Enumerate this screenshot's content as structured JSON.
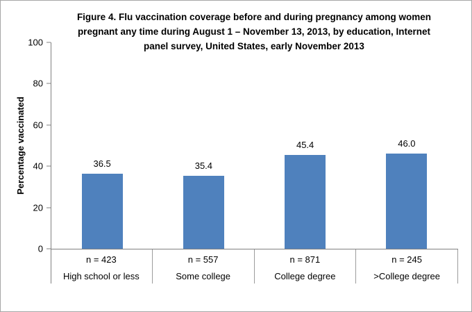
{
  "window": {
    "background": "#FFFFFF",
    "border_color": "#A6A6A6"
  },
  "chart_data": {
    "type": "bar",
    "title": "Figure 4. Flu vaccination coverage before and during pregnancy among women pregnant any time during August 1 – November 13, 2013, by education, Internet panel survey, United States, early November 2013",
    "title_lines": [
      "Figure 4. Flu vaccination coverage before and during pregnancy among women",
      "pregnant any time during August 1 – November 13, 2013, by education, Internet",
      "panel survey, United States, early November 2013"
    ],
    "xlabel": "",
    "ylabel": "Percentage vaccinated",
    "categories": [
      "High school or less",
      "Some college",
      "College degree",
      ">College degree"
    ],
    "values": [
      36.5,
      35.4,
      45.4,
      46.0
    ],
    "value_labels": [
      "36.5",
      "35.4",
      "45.4",
      "46.0"
    ],
    "sample_sizes": [
      "n = 423",
      "n = 557",
      "n = 871",
      "n = 245"
    ],
    "yticks": [
      "0",
      "20",
      "40",
      "60",
      "80",
      "100"
    ],
    "ytick_values": [
      0,
      20,
      40,
      60,
      80,
      100
    ],
    "ylim": [
      0,
      100
    ],
    "grid": false,
    "legend": false,
    "bar_color": "#4F81BD",
    "axis_color": "#808080"
  }
}
